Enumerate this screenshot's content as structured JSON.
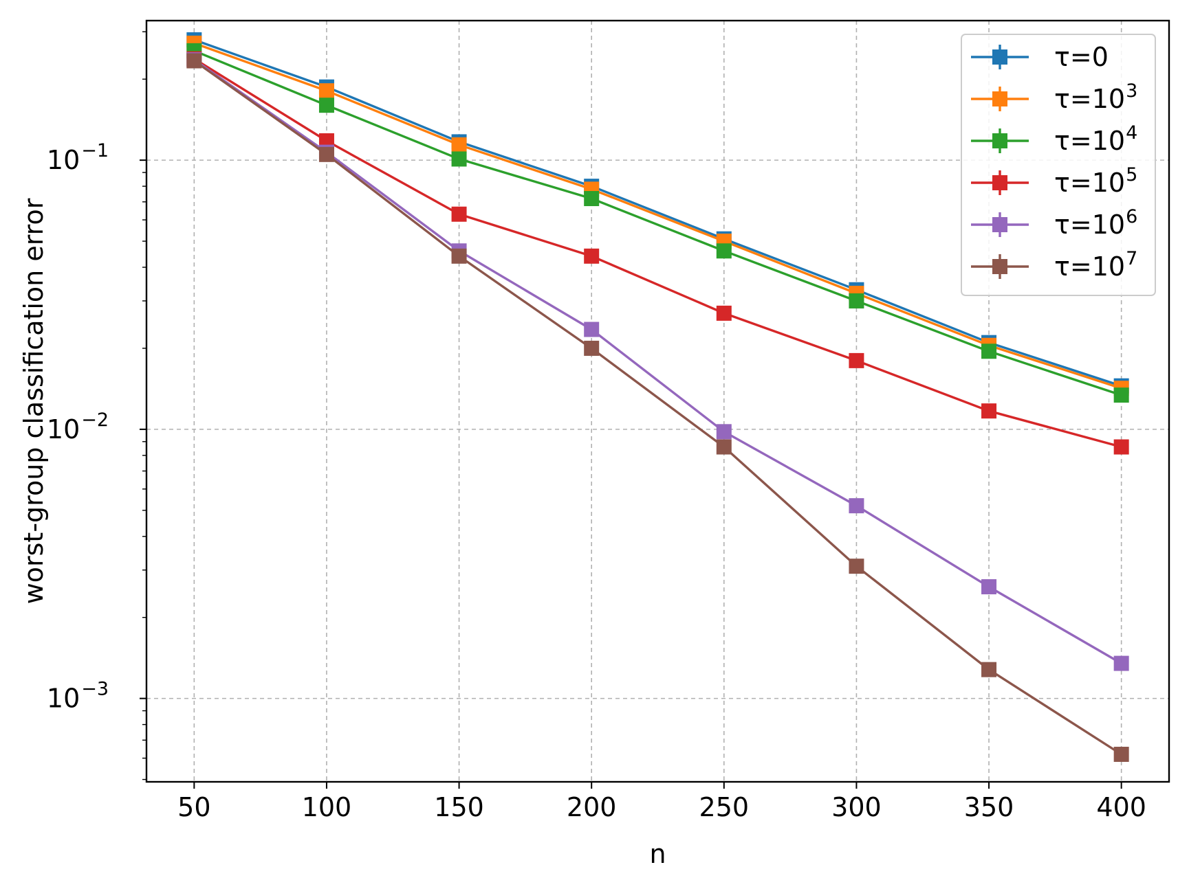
{
  "chart_data": {
    "type": "line",
    "xlabel": "n",
    "ylabel": "worst-group classification error",
    "x": [
      50,
      100,
      150,
      200,
      250,
      300,
      350,
      400
    ],
    "xticks": [
      "50",
      "100",
      "150",
      "200",
      "250",
      "300",
      "350",
      "400"
    ],
    "xlim": [
      32,
      418
    ],
    "yscale": "log",
    "ylim": [
      0.00049,
      0.33
    ],
    "yticks": [
      {
        "value": 0.1,
        "base": "10",
        "exp": "−1"
      },
      {
        "value": 0.01,
        "base": "10",
        "exp": "−2"
      },
      {
        "value": 0.001,
        "base": "10",
        "exp": "−3"
      }
    ],
    "grid": true,
    "legend_position": "top-right",
    "series": [
      {
        "name": "τ=0",
        "legend_base": "τ=",
        "legend_num": "0",
        "legend_exp": "",
        "color": "#1f77b4",
        "values": [
          0.28,
          0.187,
          0.117,
          0.08,
          0.051,
          0.033,
          0.021,
          0.0145
        ]
      },
      {
        "name": "τ=10^3",
        "legend_base": "τ=",
        "legend_num": "10",
        "legend_exp": "3",
        "color": "#ff7f0e",
        "values": [
          0.272,
          0.181,
          0.114,
          0.078,
          0.05,
          0.032,
          0.0205,
          0.0142
        ]
      },
      {
        "name": "τ=10^4",
        "legend_base": "τ=",
        "legend_num": "10",
        "legend_exp": "4",
        "color": "#2ca02c",
        "values": [
          0.255,
          0.16,
          0.101,
          0.072,
          0.046,
          0.03,
          0.0195,
          0.0134
        ]
      },
      {
        "name": "τ=10^5",
        "legend_base": "τ=",
        "legend_num": "10",
        "legend_exp": "5",
        "color": "#d62728",
        "values": [
          0.238,
          0.118,
          0.063,
          0.044,
          0.027,
          0.018,
          0.0117,
          0.0086
        ]
      },
      {
        "name": "τ=10^6",
        "legend_base": "τ=",
        "legend_num": "10",
        "legend_exp": "6",
        "color": "#9467bd",
        "values": [
          0.236,
          0.107,
          0.046,
          0.0235,
          0.0098,
          0.0052,
          0.0026,
          0.00135
        ]
      },
      {
        "name": "τ=10^7",
        "legend_base": "τ=",
        "legend_num": "10",
        "legend_exp": "7",
        "color": "#8c564b",
        "values": [
          0.234,
          0.105,
          0.044,
          0.02,
          0.0086,
          0.0031,
          0.00128,
          0.00062
        ]
      }
    ]
  }
}
